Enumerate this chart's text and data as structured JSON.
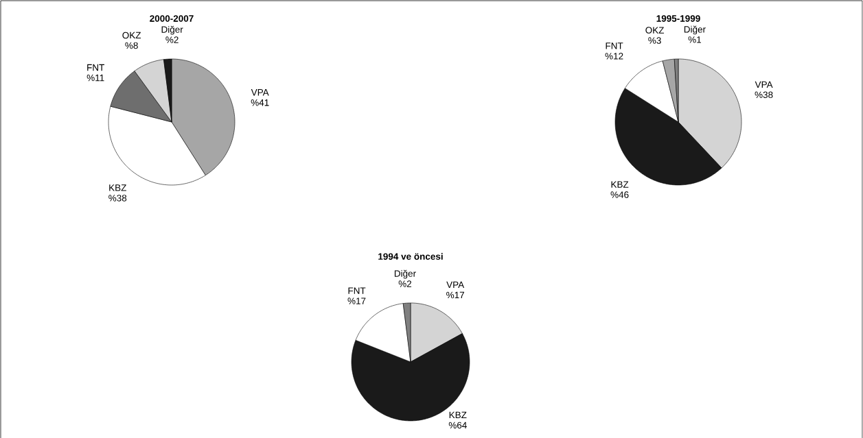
{
  "chart_data": [
    {
      "type": "pie",
      "title": "2000-2007",
      "categories": [
        "VPA",
        "KBZ",
        "FNT",
        "OKZ",
        "Diğer"
      ],
      "values": [
        41,
        38,
        11,
        8,
        2
      ],
      "colors": [
        "#a6a6a6",
        "#ffffff",
        "#6e6e6e",
        "#d4d4d4",
        "#1a1a1a"
      ],
      "value_labels": [
        "%41",
        "%38",
        "%11",
        "%8",
        "%2"
      ]
    },
    {
      "type": "pie",
      "title": "1995-1999",
      "categories": [
        "VPA",
        "KBZ",
        "FNT",
        "OKZ",
        "Diğer"
      ],
      "values": [
        38,
        46,
        12,
        3,
        1
      ],
      "colors": [
        "#d4d4d4",
        "#1a1a1a",
        "#ffffff",
        "#a6a6a6",
        "#808080"
      ],
      "value_labels": [
        "%38",
        "%46",
        "%12",
        "%3",
        "%1"
      ]
    },
    {
      "type": "pie",
      "title": "1994 ve öncesi",
      "categories": [
        "VPA",
        "KBZ",
        "FNT",
        "Diğer"
      ],
      "values": [
        17,
        64,
        17,
        2
      ],
      "colors": [
        "#d4d4d4",
        "#1a1a1a",
        "#ffffff",
        "#808080"
      ],
      "value_labels": [
        "%17",
        "%64",
        "%17",
        "%2"
      ]
    }
  ]
}
